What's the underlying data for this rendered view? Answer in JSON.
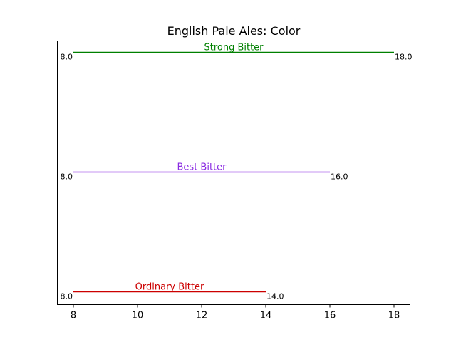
{
  "chart_data": {
    "type": "range",
    "title": "English Pale Ales: Color",
    "xlabel": "",
    "ylabel": "",
    "xlim": [
      7.5,
      18.5
    ],
    "xticks": [
      8,
      10,
      12,
      14,
      16,
      18
    ],
    "xtick_labels": [
      "8",
      "10",
      "12",
      "14",
      "16",
      "18"
    ],
    "grid": false,
    "series": [
      {
        "name": "Ordinary Bitter",
        "min": 8.0,
        "max": 14.0,
        "min_label": "8.0",
        "max_label": "14.0",
        "color": "#cc0000"
      },
      {
        "name": "Best Bitter",
        "min": 8.0,
        "max": 16.0,
        "min_label": "8.0",
        "max_label": "16.0",
        "color": "#8a2be2"
      },
      {
        "name": "Strong Bitter",
        "min": 8.0,
        "max": 18.0,
        "min_label": "8.0",
        "max_label": "18.0",
        "color": "#008000"
      }
    ]
  }
}
